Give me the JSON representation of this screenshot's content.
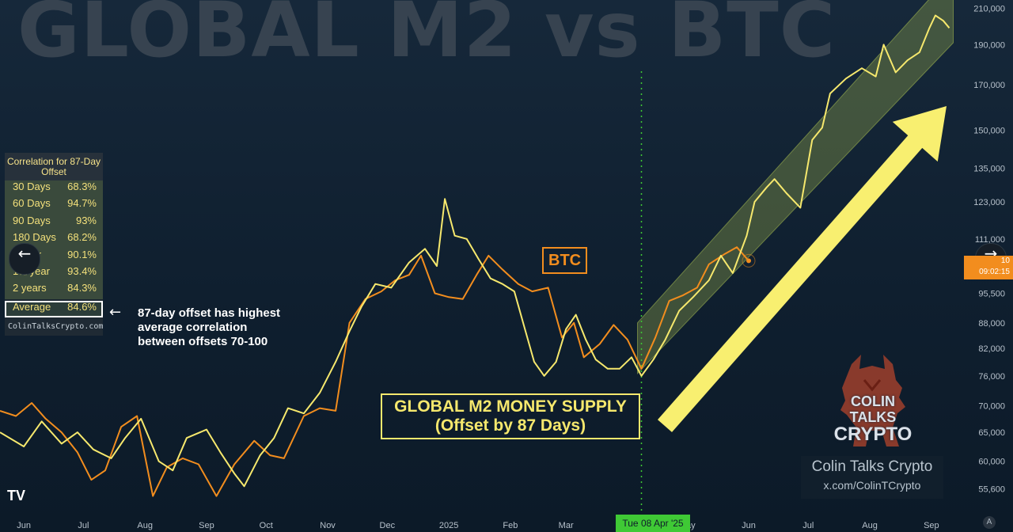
{
  "header": {
    "title": "GLOBAL M2 vs BTC"
  },
  "correlation_table": {
    "title": "Correlation for 87-Day Offset",
    "rows": [
      {
        "period": "30 Days",
        "value": "68.3%"
      },
      {
        "period": "60 Days",
        "value": "94.7%"
      },
      {
        "period": "90 Days",
        "value": "93%"
      },
      {
        "period": "180 Days",
        "value": "68.2%"
      },
      {
        "period": "1 year",
        "value": "90.1%"
      },
      {
        "period": "1½ year",
        "value": "93.4%"
      },
      {
        "period": "2 years",
        "value": "84.3%"
      }
    ],
    "average": {
      "period": "Average",
      "value": "84.6%"
    },
    "footer": "ColinTalksCrypto.com"
  },
  "annotation": {
    "arrow": "←",
    "line1": "87-day offset has highest",
    "line2": "average correlation",
    "line3": "between offsets 70-100"
  },
  "labels": {
    "btc": "BTC",
    "m2_line1": "GLOBAL M2 MONEY SUPPLY",
    "m2_line2": "(Offset by 87 Days)"
  },
  "branding": {
    "name": "Colin Talks Crypto",
    "handle": "x.com/ColinTCrypto",
    "logo_line1": "COLIN TALKS",
    "logo_line2": "CRYPTO",
    "tv_logo": "TV"
  },
  "crosshair": {
    "date_label": "Tue 08 Apr '25",
    "price_label_1": "10",
    "price_label_2": "09:02:15"
  },
  "nav": {
    "prev_icon": "arrow-left-icon",
    "next_icon": "arrow-right-icon",
    "prev_glyph": "←",
    "next_glyph": "→"
  },
  "corner_button": "A",
  "colors": {
    "btc": "#f28d1e",
    "m2": "#f6e86d",
    "channel": "#9bb04e",
    "arrow": "#f8ef70",
    "crosshair": "#3fc935",
    "grid": "#1d2d3c"
  },
  "chart_data": {
    "type": "line",
    "title": "GLOBAL M2 vs BTC",
    "log_scale": true,
    "ylim": [
      52000,
      215000
    ],
    "yticks": [
      55600,
      60000,
      65000,
      70000,
      76000,
      82000,
      88000,
      95500,
      103000,
      111000,
      123000,
      135000,
      150000,
      170000,
      190000,
      210000
    ],
    "ytick_labels": [
      "55,600",
      "60,000",
      "65,000",
      "70,000",
      "76,000",
      "82,000",
      "88,000",
      "95,500",
      "103,000",
      "111,000",
      "123,000",
      "135,000",
      "150,000",
      "170,000",
      "190,000",
      "210,000"
    ],
    "x_range": [
      "2024-05-20",
      "2025-09-15"
    ],
    "xtick_dates": [
      "2024-06-01",
      "2024-07-01",
      "2024-08-01",
      "2024-09-01",
      "2024-10-01",
      "2024-11-01",
      "2024-12-01",
      "2025-01-01",
      "2025-02-01",
      "2025-03-01",
      "2025-05-01",
      "2025-06-01",
      "2025-07-01",
      "2025-08-01",
      "2025-09-01"
    ],
    "xtick_labels": [
      "Jun",
      "Jul",
      "Aug",
      "Sep",
      "Oct",
      "Nov",
      "Dec",
      "2025",
      "Feb",
      "Mar",
      "May",
      "Jun",
      "Jul",
      "Aug",
      "Sep"
    ],
    "grid": false,
    "series": [
      {
        "name": "BTC",
        "points": [
          [
            "2024-05-20",
            69000
          ],
          [
            "2024-05-28",
            68000
          ],
          [
            "2024-06-05",
            70500
          ],
          [
            "2024-06-12",
            67500
          ],
          [
            "2024-06-20",
            65000
          ],
          [
            "2024-06-28",
            61500
          ],
          [
            "2024-07-05",
            57000
          ],
          [
            "2024-07-12",
            58500
          ],
          [
            "2024-07-20",
            66000
          ],
          [
            "2024-07-28",
            68000
          ],
          [
            "2024-08-05",
            54500
          ],
          [
            "2024-08-12",
            59000
          ],
          [
            "2024-08-20",
            60500
          ],
          [
            "2024-08-28",
            59500
          ],
          [
            "2024-09-06",
            54500
          ],
          [
            "2024-09-15",
            59500
          ],
          [
            "2024-09-25",
            63500
          ],
          [
            "2024-10-03",
            61000
          ],
          [
            "2024-10-10",
            60500
          ],
          [
            "2024-10-20",
            68000
          ],
          [
            "2024-10-28",
            69500
          ],
          [
            "2024-11-05",
            69000
          ],
          [
            "2024-11-12",
            88000
          ],
          [
            "2024-11-20",
            94000
          ],
          [
            "2024-11-28",
            96000
          ],
          [
            "2024-12-05",
            99000
          ],
          [
            "2024-12-12",
            100500
          ],
          [
            "2024-12-18",
            106000
          ],
          [
            "2024-12-25",
            95500
          ],
          [
            "2025-01-01",
            94500
          ],
          [
            "2025-01-08",
            94000
          ],
          [
            "2025-01-15",
            100500
          ],
          [
            "2025-01-21",
            106000
          ],
          [
            "2025-01-28",
            102000
          ],
          [
            "2025-02-05",
            98000
          ],
          [
            "2025-02-12",
            96000
          ],
          [
            "2025-02-20",
            97000
          ],
          [
            "2025-02-27",
            84500
          ],
          [
            "2025-03-05",
            88000
          ],
          [
            "2025-03-10",
            80000
          ],
          [
            "2025-03-18",
            83000
          ],
          [
            "2025-03-25",
            87500
          ],
          [
            "2025-04-01",
            84000
          ],
          [
            "2025-04-08",
            77500
          ],
          [
            "2025-04-15",
            84500
          ],
          [
            "2025-04-22",
            93500
          ],
          [
            "2025-04-29",
            95000
          ],
          [
            "2025-05-06",
            97000
          ],
          [
            "2025-05-12",
            103500
          ],
          [
            "2025-05-20",
            106500
          ],
          [
            "2025-05-26",
            108500
          ],
          [
            "2025-06-01",
            104500
          ]
        ]
      },
      {
        "name": "GLOBAL M2 MONEY SUPPLY (Offset by 87 Days)",
        "points": [
          [
            "2024-05-20",
            65000
          ],
          [
            "2024-06-01",
            62500
          ],
          [
            "2024-06-10",
            67000
          ],
          [
            "2024-06-20",
            63000
          ],
          [
            "2024-06-28",
            65000
          ],
          [
            "2024-07-06",
            62000
          ],
          [
            "2024-07-15",
            60500
          ],
          [
            "2024-07-22",
            64000
          ],
          [
            "2024-07-30",
            67500
          ],
          [
            "2024-08-08",
            60000
          ],
          [
            "2024-08-15",
            58500
          ],
          [
            "2024-08-22",
            64000
          ],
          [
            "2024-09-01",
            65500
          ],
          [
            "2024-09-08",
            61500
          ],
          [
            "2024-09-15",
            58000
          ],
          [
            "2024-09-20",
            56000
          ],
          [
            "2024-09-28",
            61000
          ],
          [
            "2024-10-05",
            64000
          ],
          [
            "2024-10-12",
            69500
          ],
          [
            "2024-10-20",
            68500
          ],
          [
            "2024-10-28",
            72500
          ],
          [
            "2024-11-05",
            79000
          ],
          [
            "2024-11-12",
            86000
          ],
          [
            "2024-11-18",
            92000
          ],
          [
            "2024-11-25",
            98000
          ],
          [
            "2024-12-03",
            97000
          ],
          [
            "2024-12-12",
            104000
          ],
          [
            "2024-12-20",
            108000
          ],
          [
            "2024-12-26",
            103000
          ],
          [
            "2024-12-30",
            124000
          ],
          [
            "2025-01-04",
            112000
          ],
          [
            "2025-01-10",
            111000
          ],
          [
            "2025-01-16",
            105000
          ],
          [
            "2025-01-22",
            99500
          ],
          [
            "2025-01-28",
            98000
          ],
          [
            "2025-02-03",
            96000
          ],
          [
            "2025-02-08",
            87000
          ],
          [
            "2025-02-13",
            79000
          ],
          [
            "2025-02-18",
            76000
          ],
          [
            "2025-02-24",
            79000
          ],
          [
            "2025-03-01",
            86500
          ],
          [
            "2025-03-06",
            90000
          ],
          [
            "2025-03-11",
            84000
          ],
          [
            "2025-03-16",
            79500
          ],
          [
            "2025-03-22",
            77500
          ],
          [
            "2025-03-28",
            77500
          ],
          [
            "2025-04-03",
            80000
          ],
          [
            "2025-04-08",
            76000
          ],
          [
            "2025-04-14",
            79500
          ],
          [
            "2025-04-20",
            84000
          ],
          [
            "2025-04-27",
            91000
          ],
          [
            "2025-05-04",
            94500
          ],
          [
            "2025-05-12",
            99000
          ],
          [
            "2025-05-18",
            106000
          ],
          [
            "2025-05-24",
            101000
          ],
          [
            "2025-05-31",
            112000
          ],
          [
            "2025-06-04",
            123000
          ],
          [
            "2025-06-10",
            128000
          ],
          [
            "2025-06-14",
            131000
          ],
          [
            "2025-06-20",
            126000
          ],
          [
            "2025-06-27",
            121000
          ],
          [
            "2025-07-03",
            146000
          ],
          [
            "2025-07-08",
            151000
          ],
          [
            "2025-07-12",
            166000
          ],
          [
            "2025-07-20",
            173000
          ],
          [
            "2025-07-28",
            178000
          ],
          [
            "2025-08-04",
            174000
          ],
          [
            "2025-08-08",
            190000
          ],
          [
            "2025-08-14",
            176000
          ],
          [
            "2025-08-20",
            182000
          ],
          [
            "2025-08-26",
            186000
          ],
          [
            "2025-08-31",
            199000
          ],
          [
            "2025-09-03",
            206000
          ],
          [
            "2025-09-07",
            203000
          ],
          [
            "2025-09-10",
            199000
          ]
        ]
      }
    ],
    "channel": {
      "lower": [
        [
          "2025-04-06",
          76500
        ],
        [
          "2025-09-12",
          191000
        ]
      ],
      "upper": [
        [
          "2025-04-06",
          88000
        ],
        [
          "2025-09-12",
          232000
        ]
      ]
    },
    "crosshair_date": "2025-04-08"
  }
}
